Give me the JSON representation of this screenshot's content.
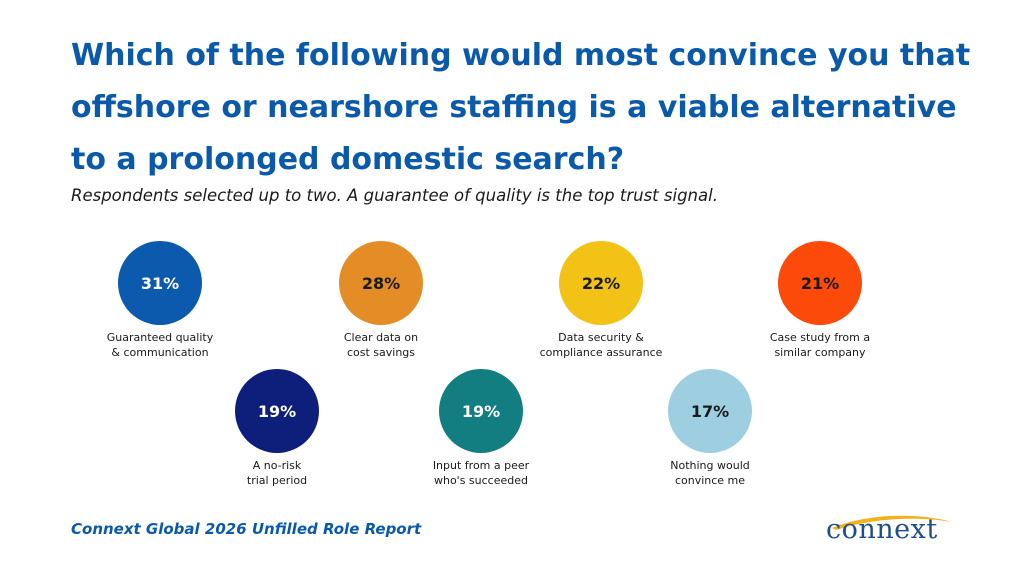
{
  "title": "Which of the following would most convince you that offshore or nearshore staffing is a viable alternative to a prolonged domestic search?",
  "subtitle": "Respondents selected up to two. A guarantee of quality is the top trust signal.",
  "footer": "Connext Global 2026 Unfilled Role Report",
  "logo_text": "connext",
  "chart_data": {
    "type": "bubble-percent",
    "unit": "%",
    "items": [
      {
        "label": "Guaranteed quality\n& communication",
        "value": 31,
        "display": "31%",
        "color": "#0b5aad",
        "text_color": "#ffffff"
      },
      {
        "label": "Clear data on\ncost savings",
        "value": 28,
        "display": "28%",
        "color": "#e48d27",
        "text_color": "#1a1a1a"
      },
      {
        "label": "Data security &\ncompliance assurance",
        "value": 22,
        "display": "22%",
        "color": "#f2c316",
        "text_color": "#1a1a1a"
      },
      {
        "label": "Case study from a\nsimilar company",
        "value": 21,
        "display": "21%",
        "color": "#fb4a0a",
        "text_color": "#1a1a1a"
      },
      {
        "label": "A no-risk\ntrial period",
        "value": 19,
        "display": "19%",
        "color": "#0d1e7b",
        "text_color": "#ffffff"
      },
      {
        "label": "Input from a peer\nwho's succeeded",
        "value": 19,
        "display": "19%",
        "color": "#127e82",
        "text_color": "#ffffff"
      },
      {
        "label": "Nothing would\nconvince me",
        "value": 17,
        "display": "17%",
        "color": "#9dcfe0",
        "text_color": "#1a1a1a"
      }
    ]
  }
}
